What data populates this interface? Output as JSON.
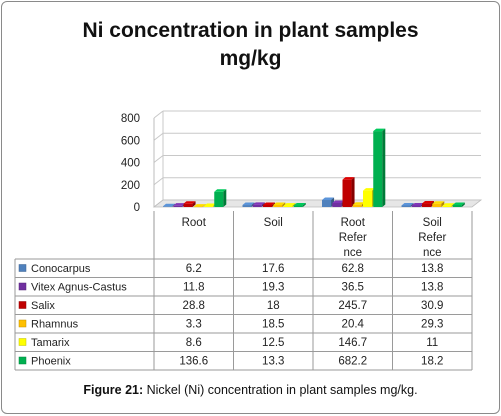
{
  "chart_data": {
    "type": "bar",
    "title_lines": [
      "Ni concentration in plant samples",
      "mg/kg"
    ],
    "categories": [
      [
        "Root"
      ],
      [
        "Soil"
      ],
      [
        "Root",
        "Refer",
        "nce"
      ],
      [
        "Soil",
        "Refer",
        "nce"
      ]
    ],
    "series": [
      {
        "name": "Conocarpus",
        "color": "#4f81bd",
        "values": [
          6.2,
          17.6,
          62.8,
          13.8
        ]
      },
      {
        "name": "Vitex Agnus-Castus",
        "color": "#7030a0",
        "values": [
          11.8,
          19.3,
          36.5,
          13.8
        ]
      },
      {
        "name": "Salix",
        "color": "#c00000",
        "values": [
          28.8,
          18,
          245.7,
          30.9
        ]
      },
      {
        "name": "Rhamnus",
        "color": "#ffc000",
        "values": [
          3.3,
          18.5,
          20.4,
          29.3
        ]
      },
      {
        "name": "Tamarix",
        "color": "#ffff00",
        "values": [
          8.6,
          12.5,
          146.7,
          11
        ]
      },
      {
        "name": "Phoenix",
        "color": "#00b050",
        "values": [
          136.6,
          13.3,
          682.2,
          18.2
        ]
      }
    ],
    "yticks": [
      0,
      200,
      400,
      600,
      800
    ],
    "ylim": [
      0,
      800
    ],
    "grid": true,
    "legend": "data-table-left",
    "data_table_strings": [
      [
        "6.2",
        "17.6",
        "62.8",
        "13.8"
      ],
      [
        "11.8",
        "19.3",
        "36.5",
        "13.8"
      ],
      [
        "28.8",
        "18",
        "245.7",
        "30.9"
      ],
      [
        "3.3",
        "18.5",
        "20.4",
        "29.3"
      ],
      [
        "8.6",
        "12.5",
        "146.7",
        "11"
      ],
      [
        "136.6",
        "13.3",
        "682.2",
        "18.2"
      ]
    ]
  },
  "caption": {
    "label": "Figure 21:",
    "text": " Nickel (Ni) concentration in plant samples mg/kg."
  }
}
